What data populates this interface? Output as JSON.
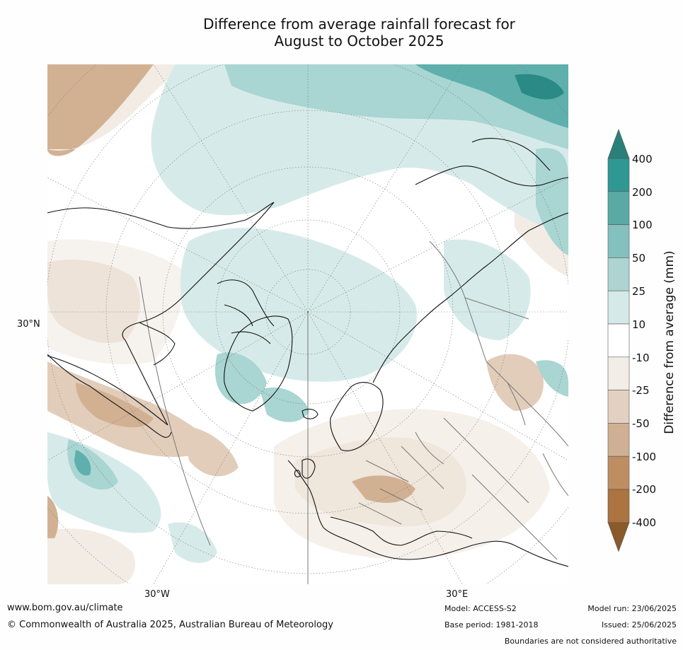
{
  "title_line1": "Difference from average rainfall forecast for",
  "title_line2": "August to October 2025",
  "map": {
    "lat_label": "30°N",
    "lon_labels": [
      "30°W",
      "30°E"
    ],
    "region": "Northern hemisphere polar projection",
    "colors": {
      "wet_strong": "#2a8a85",
      "wet_mid": "#5fb0ac",
      "wet_light": "#a9d5d2",
      "wet_faint": "#d6ebe9",
      "neutral": "#ffffff",
      "dry_faint": "#f2ece5",
      "dry_light": "#e2cdbb",
      "dry_mid": "#d2b193",
      "dry_strong": "#bd8d64",
      "coast": "#111111",
      "border": "#777777",
      "grid": "#777777"
    }
  },
  "colorbar": {
    "title": "Difference from average (mm)",
    "ticks": [
      "400",
      "200",
      "100",
      "50",
      "25",
      "10",
      "-10",
      "-25",
      "-50",
      "-100",
      "-200",
      "-400"
    ],
    "colors": [
      "#2b7f79",
      "#2f9893",
      "#5aa9a5",
      "#84c0bd",
      "#acd5d2",
      "#d5eae8",
      "#ffffff",
      "#f2ede7",
      "#e3d0c0",
      "#cfb092",
      "#be8e62",
      "#ab7440",
      "#8a5a2a"
    ]
  },
  "footer": {
    "website": "www.bom.gov.au/climate",
    "copyright": "© Commonwealth of Australia 2025, Australian Bureau of Meteorology",
    "model": "Model: ACCESS-S2",
    "base_period": "Base period: 1981-2018",
    "model_run": "Model run: 23/06/2025",
    "issued": "Issued: 25/06/2025",
    "boundaries_note": "Boundaries are not considered authoritative"
  }
}
